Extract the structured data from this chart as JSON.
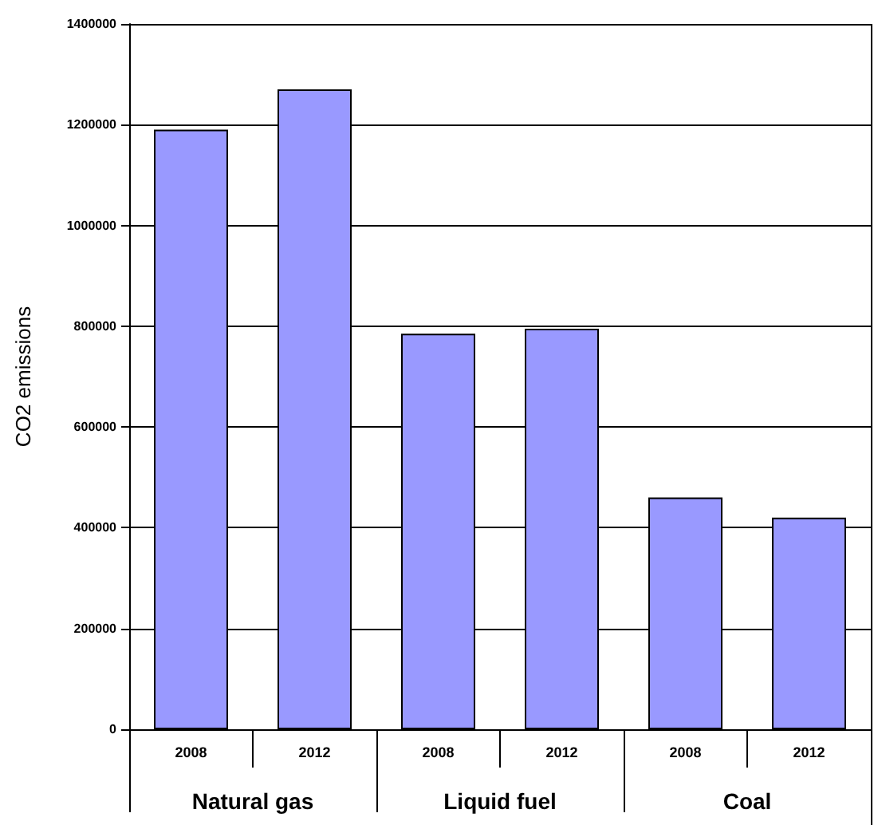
{
  "chart_data": {
    "type": "bar",
    "ylabel": "CO2 emissions",
    "categories": [
      "2008",
      "2012",
      "2008",
      "2012",
      "2008",
      "2012"
    ],
    "values": [
      1190000,
      1270000,
      785000,
      795000,
      460000,
      420000
    ],
    "color": "#9999ff",
    "annotations": [
      "Natural gas",
      "Liquid fuel",
      "Coal"
    ],
    "ylim": [
      0,
      1400000
    ],
    "yticks": [
      0,
      200000,
      400000,
      600000,
      800000,
      1000000,
      1200000,
      1400000
    ],
    "grid": "y"
  }
}
